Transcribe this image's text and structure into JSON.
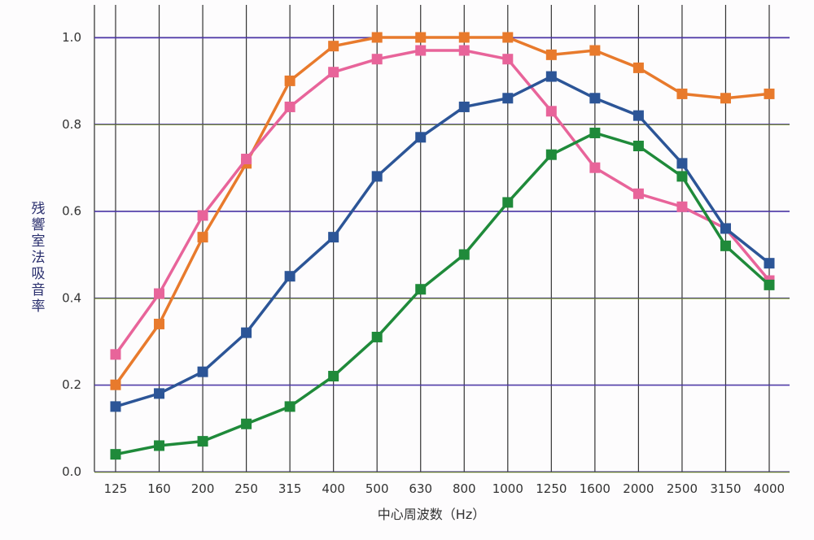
{
  "chart_data": {
    "type": "line",
    "title": "",
    "xlabel": "中心周波数（Hz）",
    "ylabel": "残響室法吸音率",
    "ylim": [
      0,
      1.0
    ],
    "yticks": [
      "0.0",
      "0.2",
      "0.4",
      "0.6",
      "0.8",
      "1.0"
    ],
    "ytick_values": [
      0,
      0.2,
      0.4,
      0.6,
      0.8,
      1.0
    ],
    "grid": true,
    "categories": [
      "125",
      "160",
      "200",
      "250",
      "315",
      "400",
      "500",
      "630",
      "800",
      "1000",
      "1250",
      "1600",
      "2000",
      "2500",
      "3150",
      "4000"
    ],
    "series": [
      {
        "name": "orange",
        "color": "#e87a2c",
        "values": [
          0.2,
          0.34,
          0.54,
          0.71,
          0.9,
          0.98,
          1.0,
          1.0,
          1.0,
          1.0,
          0.96,
          0.97,
          0.93,
          0.87,
          0.86,
          0.87
        ]
      },
      {
        "name": "pink",
        "color": "#e8649a",
        "values": [
          0.27,
          0.41,
          0.59,
          0.72,
          0.84,
          0.92,
          0.95,
          0.97,
          0.97,
          0.95,
          0.83,
          0.7,
          0.64,
          0.61,
          0.56,
          0.44
        ]
      },
      {
        "name": "blue",
        "color": "#2c5597",
        "values": [
          0.15,
          0.18,
          0.23,
          0.32,
          0.45,
          0.54,
          0.68,
          0.77,
          0.84,
          0.86,
          0.91,
          0.86,
          0.82,
          0.71,
          0.56,
          0.48
        ]
      },
      {
        "name": "green",
        "color": "#1f8a3a",
        "values": [
          0.04,
          0.06,
          0.07,
          0.11,
          0.15,
          0.22,
          0.31,
          0.42,
          0.5,
          0.62,
          0.73,
          0.78,
          0.75,
          0.68,
          0.52,
          0.43
        ]
      }
    ]
  }
}
